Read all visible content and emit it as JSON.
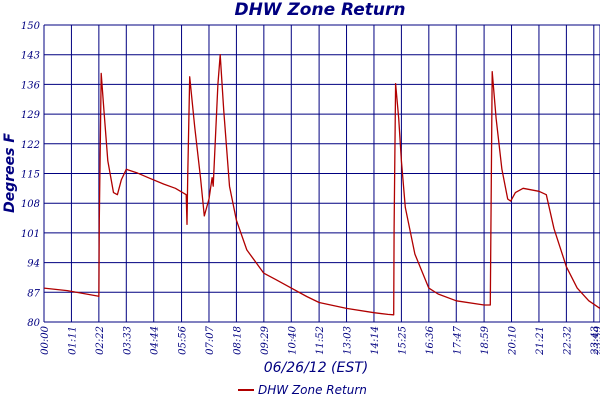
{
  "chart_data": {
    "type": "line",
    "title": "DHW Zone Return",
    "xlabel": "06/26/12 (EST)",
    "ylabel": "Degrees F",
    "ylim": [
      80,
      150
    ],
    "yticks": [
      "150",
      "143",
      "136",
      "129",
      "122",
      "115",
      "108",
      "101",
      "94",
      "87",
      "80"
    ],
    "xticks": [
      "00:00",
      "01:11",
      "02:22",
      "03:33",
      "04:44",
      "05:56",
      "07:07",
      "08:18",
      "09:29",
      "10:40",
      "11:52",
      "13:03",
      "14:14",
      "15:25",
      "16:36",
      "17:47",
      "18:59",
      "20:10",
      "21:21",
      "22:32",
      "23:43",
      "23:59"
    ],
    "grid": true,
    "legend": "bottom-center",
    "colors": {
      "series": "#b00000",
      "grid": "#000080",
      "text": "#000080"
    },
    "series": [
      {
        "name": "DHW Zone Return",
        "points": [
          [
            "00:00",
            88.0
          ],
          [
            "01:00",
            87.4
          ],
          [
            "02:20",
            86.1
          ],
          [
            "02:22",
            86.0
          ],
          [
            "02:23",
            104.0
          ],
          [
            "02:28",
            138.6
          ],
          [
            "02:35",
            130.0
          ],
          [
            "02:45",
            118.0
          ],
          [
            "03:00",
            110.5
          ],
          [
            "03:10",
            110.0
          ],
          [
            "03:20",
            113.5
          ],
          [
            "03:33",
            116.0
          ],
          [
            "04:00",
            115.2
          ],
          [
            "04:30",
            114.0
          ],
          [
            "05:10",
            112.5
          ],
          [
            "05:40",
            111.5
          ],
          [
            "06:08",
            110.0
          ],
          [
            "06:10",
            103.0
          ],
          [
            "06:12",
            114.0
          ],
          [
            "06:17",
            137.8
          ],
          [
            "06:30",
            126.0
          ],
          [
            "06:45",
            114.0
          ],
          [
            "06:55",
            105.0
          ],
          [
            "07:07",
            109.0
          ],
          [
            "07:15",
            114.0
          ],
          [
            "07:18",
            112.0
          ],
          [
            "07:30",
            136.0
          ],
          [
            "07:36",
            143.0
          ],
          [
            "07:45",
            130.0
          ],
          [
            "08:00",
            112.0
          ],
          [
            "08:18",
            104.0
          ],
          [
            "08:45",
            97.0
          ],
          [
            "09:29",
            91.5
          ],
          [
            "10:00",
            90.0
          ],
          [
            "10:40",
            88.0
          ],
          [
            "11:20",
            86.0
          ],
          [
            "11:52",
            84.6
          ],
          [
            "13:03",
            83.2
          ],
          [
            "14:14",
            82.2
          ],
          [
            "14:50",
            81.8
          ],
          [
            "15:05",
            81.7
          ],
          [
            "15:06",
            102.0
          ],
          [
            "15:10",
            136.2
          ],
          [
            "15:18",
            128.0
          ],
          [
            "15:25",
            118.0
          ],
          [
            "15:35",
            107.0
          ],
          [
            "16:00",
            96.0
          ],
          [
            "16:36",
            88.0
          ],
          [
            "17:00",
            86.6
          ],
          [
            "17:47",
            85.0
          ],
          [
            "18:59",
            84.0
          ],
          [
            "19:15",
            84.0
          ],
          [
            "19:16",
            96.0
          ],
          [
            "19:20",
            139.0
          ],
          [
            "19:30",
            128.0
          ],
          [
            "19:45",
            116.0
          ],
          [
            "20:00",
            109.0
          ],
          [
            "20:08",
            108.5
          ],
          [
            "20:20",
            110.5
          ],
          [
            "20:40",
            111.5
          ],
          [
            "21:21",
            110.8
          ],
          [
            "21:40",
            110.0
          ],
          [
            "22:00",
            102.0
          ],
          [
            "22:32",
            93.0
          ],
          [
            "23:00",
            88.0
          ],
          [
            "23:30",
            85.0
          ],
          [
            "23:43",
            84.2
          ],
          [
            "23:59",
            83.2
          ]
        ]
      }
    ]
  }
}
